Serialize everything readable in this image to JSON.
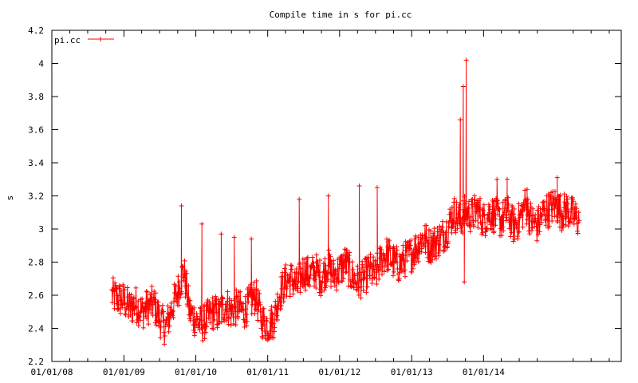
{
  "chart_data": {
    "type": "line",
    "title": "Compile time in s for pi.cc",
    "xlabel": "",
    "ylabel": "s",
    "ylim": [
      2.2,
      4.2
    ],
    "xlim": [
      "2008-01-01",
      "2015-12-01"
    ],
    "y_ticks": [
      "2.2",
      "2.4",
      "2.6",
      "2.8",
      "3",
      "3.2",
      "3.4",
      "3.6",
      "3.8",
      "4",
      "4.2"
    ],
    "x_ticks": [
      {
        "date": "2008-01-01",
        "label": "01/01/08"
      },
      {
        "date": "2009-01-01",
        "label": "01/01/09"
      },
      {
        "date": "2010-01-01",
        "label": "01/01/10"
      },
      {
        "date": "2011-01-01",
        "label": "01/01/11"
      },
      {
        "date": "2012-01-01",
        "label": "01/01/12"
      },
      {
        "date": "2013-01-01",
        "label": "01/01/13"
      },
      {
        "date": "2014-01-01",
        "label": "01/01/14"
      }
    ],
    "legend_position": "top-left",
    "grid": false,
    "series": [
      {
        "name": "pi.cc",
        "color": "#ff0000",
        "marker": "plus",
        "points": [
          [
            "2008-11-01",
            2.6
          ],
          [
            "2008-12-01",
            2.58
          ],
          [
            "2009-01-01",
            2.57
          ],
          [
            "2009-02-01",
            2.52
          ],
          [
            "2009-03-01",
            2.55
          ],
          [
            "2009-04-01",
            2.5
          ],
          [
            "2009-05-01",
            2.53
          ],
          [
            "2009-06-01",
            2.55
          ],
          [
            "2009-07-01",
            2.46
          ],
          [
            "2009-08-01",
            2.4
          ],
          [
            "2009-09-01",
            2.52
          ],
          [
            "2009-10-01",
            2.62
          ],
          [
            "2009-11-01",
            2.75
          ],
          [
            "2009-12-01",
            2.5
          ],
          [
            "2010-01-01",
            2.45
          ],
          [
            "2010-02-01",
            2.42
          ],
          [
            "2010-03-01",
            2.46
          ],
          [
            "2010-04-01",
            2.5
          ],
          [
            "2010-05-01",
            2.48
          ],
          [
            "2010-06-01",
            2.55
          ],
          [
            "2010-07-01",
            2.5
          ],
          [
            "2010-08-01",
            2.53
          ],
          [
            "2010-09-01",
            2.5
          ],
          [
            "2010-10-01",
            2.55
          ],
          [
            "2010-11-01",
            2.6
          ],
          [
            "2010-12-01",
            2.45
          ],
          [
            "2011-01-01",
            2.42
          ],
          [
            "2011-02-01",
            2.45
          ],
          [
            "2011-03-01",
            2.6
          ],
          [
            "2011-04-01",
            2.68
          ],
          [
            "2011-05-01",
            2.7
          ],
          [
            "2011-06-01",
            2.65
          ],
          [
            "2011-07-01",
            2.75
          ],
          [
            "2011-08-01",
            2.72
          ],
          [
            "2011-09-01",
            2.75
          ],
          [
            "2011-10-01",
            2.7
          ],
          [
            "2011-11-01",
            2.78
          ],
          [
            "2011-12-01",
            2.72
          ],
          [
            "2012-01-01",
            2.75
          ],
          [
            "2012-02-01",
            2.8
          ],
          [
            "2012-03-01",
            2.72
          ],
          [
            "2012-04-01",
            2.68
          ],
          [
            "2012-05-01",
            2.7
          ],
          [
            "2012-06-01",
            2.75
          ],
          [
            "2012-07-01",
            2.72
          ],
          [
            "2012-08-01",
            2.82
          ],
          [
            "2012-09-01",
            2.85
          ],
          [
            "2012-10-01",
            2.8
          ],
          [
            "2012-11-01",
            2.78
          ],
          [
            "2012-12-01",
            2.82
          ],
          [
            "2013-01-01",
            2.85
          ],
          [
            "2013-02-01",
            2.9
          ],
          [
            "2013-03-01",
            2.95
          ],
          [
            "2013-04-01",
            2.9
          ],
          [
            "2013-05-01",
            2.92
          ],
          [
            "2013-06-01",
            2.95
          ],
          [
            "2013-07-01",
            3.0
          ],
          [
            "2013-08-01",
            3.1
          ],
          [
            "2013-09-01",
            3.05
          ],
          [
            "2013-10-01",
            3.1
          ],
          [
            "2013-11-01",
            3.08
          ],
          [
            "2013-12-01",
            3.12
          ],
          [
            "2014-01-01",
            3.05
          ],
          [
            "2014-02-01",
            3.1
          ],
          [
            "2014-03-01",
            3.08
          ],
          [
            "2014-04-01",
            3.05
          ],
          [
            "2014-05-01",
            3.1
          ],
          [
            "2014-06-01",
            3.02
          ],
          [
            "2014-07-01",
            3.05
          ],
          [
            "2014-08-01",
            3.15
          ],
          [
            "2014-09-01",
            3.05
          ],
          [
            "2014-10-01",
            3.02
          ],
          [
            "2014-11-01",
            3.1
          ],
          [
            "2014-12-01",
            3.12
          ],
          [
            "2015-01-01",
            3.15
          ],
          [
            "2015-02-01",
            3.1
          ],
          [
            "2015-03-01",
            3.12
          ],
          [
            "2015-04-01",
            3.08
          ],
          [
            "2015-05-01",
            3.05
          ]
        ],
        "spikes": [
          [
            "2009-10-20",
            3.14
          ],
          [
            "2010-02-01",
            3.03
          ],
          [
            "2010-05-10",
            2.97
          ],
          [
            "2010-07-15",
            2.95
          ],
          [
            "2010-10-10",
            2.94
          ],
          [
            "2011-06-10",
            3.18
          ],
          [
            "2011-11-05",
            3.2
          ],
          [
            "2012-04-10",
            3.26
          ],
          [
            "2012-07-10",
            3.25
          ],
          [
            "2013-09-05",
            3.66
          ],
          [
            "2013-09-20",
            3.86
          ],
          [
            "2013-10-05",
            4.02
          ],
          [
            "2013-09-25",
            2.68
          ],
          [
            "2014-03-10",
            3.3
          ],
          [
            "2014-05-01",
            3.3
          ],
          [
            "2014-08-10",
            3.24
          ],
          [
            "2015-01-10",
            3.31
          ]
        ]
      }
    ]
  }
}
